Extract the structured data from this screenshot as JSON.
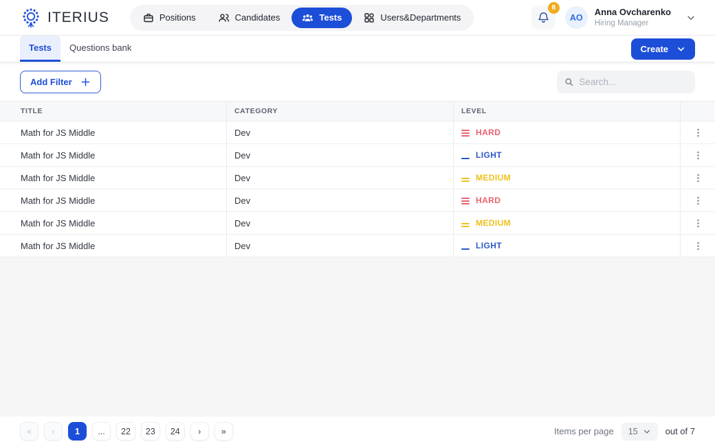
{
  "brand": {
    "name": "ITERIUS"
  },
  "nav": {
    "items": [
      {
        "label": "Positions",
        "icon": "briefcase-icon",
        "active": false
      },
      {
        "label": "Candidates",
        "icon": "people-icon",
        "active": false
      },
      {
        "label": "Tests",
        "icon": "group-icon",
        "active": true
      },
      {
        "label": "Users&Departments",
        "icon": "grid-icon",
        "active": false
      }
    ]
  },
  "user": {
    "initials": "AO",
    "name": "Anna Ovcharenko",
    "role": "Hiring Manager",
    "notification_count": "8"
  },
  "tabs": [
    {
      "label": "Tests",
      "active": true
    },
    {
      "label": "Questions bank",
      "active": false
    }
  ],
  "create_button": {
    "label": "Create"
  },
  "toolbar": {
    "add_filter_label": "Add Filter",
    "search_placeholder": "Search..."
  },
  "table": {
    "columns": [
      "TITLE",
      "CATEGORY",
      "LEVEL"
    ],
    "rows": [
      {
        "title": "Math for JS Middle",
        "category": "Dev",
        "level": "HARD"
      },
      {
        "title": "Math for JS Middle",
        "category": "Dev",
        "level": "LIGHT"
      },
      {
        "title": "Math for JS Middle",
        "category": "Dev",
        "level": "MEDIUM"
      },
      {
        "title": "Math for JS Middle",
        "category": "Dev",
        "level": "HARD"
      },
      {
        "title": "Math for JS Middle",
        "category": "Dev",
        "level": "MEDIUM"
      },
      {
        "title": "Math for JS Middle",
        "category": "Dev",
        "level": "LIGHT"
      }
    ],
    "level_styles": {
      "HARD": {
        "color": "#e8636f",
        "bars": 3
      },
      "MEDIUM": {
        "color": "#ecc11b",
        "bars": 2
      },
      "LIGHT": {
        "color": "#2b58c8",
        "bars": 1
      }
    }
  },
  "pagination": {
    "pages": [
      {
        "label": "«",
        "type": "first",
        "disabled": true
      },
      {
        "label": "‹",
        "type": "prev",
        "disabled": true
      },
      {
        "label": "1",
        "type": "page",
        "active": true
      },
      {
        "label": "...",
        "type": "ellipsis"
      },
      {
        "label": "22",
        "type": "page"
      },
      {
        "label": "23",
        "type": "page"
      },
      {
        "label": "24",
        "type": "page"
      },
      {
        "label": "›",
        "type": "next"
      },
      {
        "label": "»",
        "type": "last"
      }
    ],
    "items_per_page_label": "Items per page",
    "items_per_page_value": "15",
    "total_label": "out of 7"
  },
  "colors": {
    "primary": "#1c4ed8",
    "badge": "#f0ab1f",
    "hard": "#e8636f",
    "medium": "#ecc11b",
    "light": "#2b58c8"
  }
}
